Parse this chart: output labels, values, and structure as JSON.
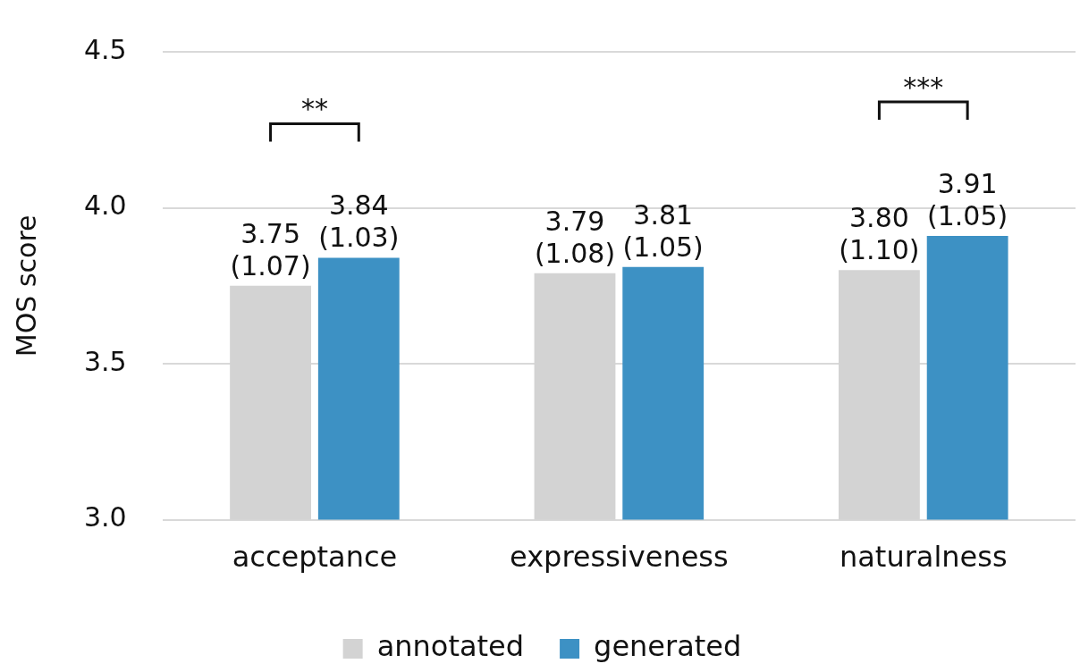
{
  "chart_data": {
    "type": "bar",
    "ylabel": "MOS score",
    "categories": [
      "acceptance",
      "expressiveness",
      "naturalness"
    ],
    "series": [
      {
        "name": "annotated",
        "color": "#d3d3d3",
        "values": [
          3.75,
          3.79,
          3.8
        ],
        "value_labels": [
          "3.75 (1.07)",
          "3.79 (1.08)",
          "3.80 (1.10)"
        ]
      },
      {
        "name": "generated",
        "color": "#3d91c4",
        "values": [
          3.84,
          3.81,
          3.91
        ],
        "value_labels": [
          "3.84 (1.03)",
          "3.81 (1.05)",
          "3.91 (1.05)"
        ]
      }
    ],
    "ylim": [
      3.0,
      4.5
    ],
    "yticks": [
      {
        "value": 3.0,
        "label": "3.0"
      },
      {
        "value": 3.5,
        "label": "3.5"
      },
      {
        "value": 4.0,
        "label": "4.0"
      },
      {
        "value": 4.5,
        "label": "4.5"
      }
    ],
    "grid": "y",
    "legend": "bottom",
    "annotations": [
      "**",
      "***"
    ]
  }
}
